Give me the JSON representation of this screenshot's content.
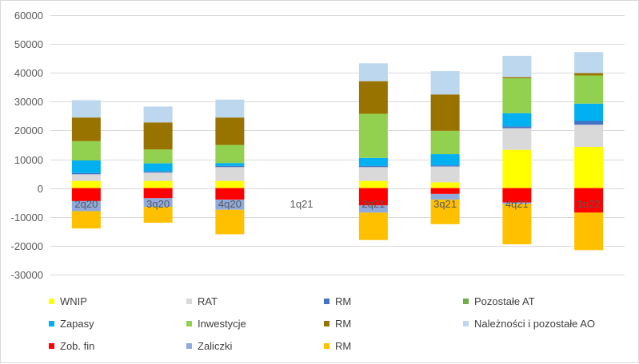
{
  "chart_data": {
    "type": "bar",
    "stacked": true,
    "categories": [
      "2q20",
      "3q20",
      "4q20",
      "1q21",
      "2q21",
      "3q21",
      "4q21",
      "1q22"
    ],
    "ylim": [
      -30000,
      60000
    ],
    "yticks": [
      -30000,
      -20000,
      -10000,
      0,
      10000,
      20000,
      30000,
      40000,
      50000,
      60000
    ],
    "ytick_labels": [
      "-30000",
      "-20000",
      "-10000",
      "0",
      "10000",
      "20000",
      "30000",
      "40000",
      "50000",
      "60000"
    ],
    "grid": true,
    "legend_position": "bottom",
    "series": [
      {
        "name": "WNIP",
        "color": "#FFFF00",
        "values": [
          2500,
          2500,
          2500,
          0,
          2500,
          2000,
          13300,
          14300
        ]
      },
      {
        "name": "RAT",
        "color": "#D9D9D9",
        "values": [
          2300,
          2900,
          4800,
          0,
          4800,
          5500,
          7500,
          7700
        ]
      },
      {
        "name": "RM",
        "color": "#4472C4",
        "values": [
          400,
          400,
          400,
          0,
          400,
          400,
          600,
          1300
        ]
      },
      {
        "name": "Pozostałe AT",
        "color": "#70AD47",
        "values": [
          0,
          0,
          0,
          0,
          0,
          0,
          0,
          0
        ]
      },
      {
        "name": "Zapasy",
        "color": "#00B0F0",
        "values": [
          4400,
          2800,
          1000,
          0,
          2800,
          3900,
          4600,
          6000
        ]
      },
      {
        "name": "Inwestycje",
        "color": "#92D050",
        "values": [
          6700,
          4800,
          6300,
          0,
          15300,
          8100,
          12100,
          9800
        ]
      },
      {
        "name": "RM",
        "color": "#997300",
        "values": [
          8200,
          9400,
          9500,
          0,
          11300,
          12600,
          400,
          800
        ]
      },
      {
        "name": "Należności i pozostałe AO",
        "color": "#BDD7EE",
        "values": [
          6000,
          5500,
          6200,
          0,
          6200,
          8100,
          7400,
          7300
        ]
      },
      {
        "name": "Zob. fin",
        "color": "#FF0000",
        "values": [
          -4500,
          -3500,
          -4000,
          0,
          -6000,
          -2000,
          -5000,
          -8500
        ]
      },
      {
        "name": "Zaliczki",
        "color": "#8FAADC",
        "values": [
          -3500,
          -3000,
          -3500,
          0,
          -2500,
          -2000,
          -500,
          0
        ]
      },
      {
        "name": "RM",
        "color": "#FFC000",
        "values": [
          -6000,
          -5500,
          -8500,
          0,
          -9500,
          -8500,
          -14000,
          -13000
        ]
      }
    ]
  }
}
